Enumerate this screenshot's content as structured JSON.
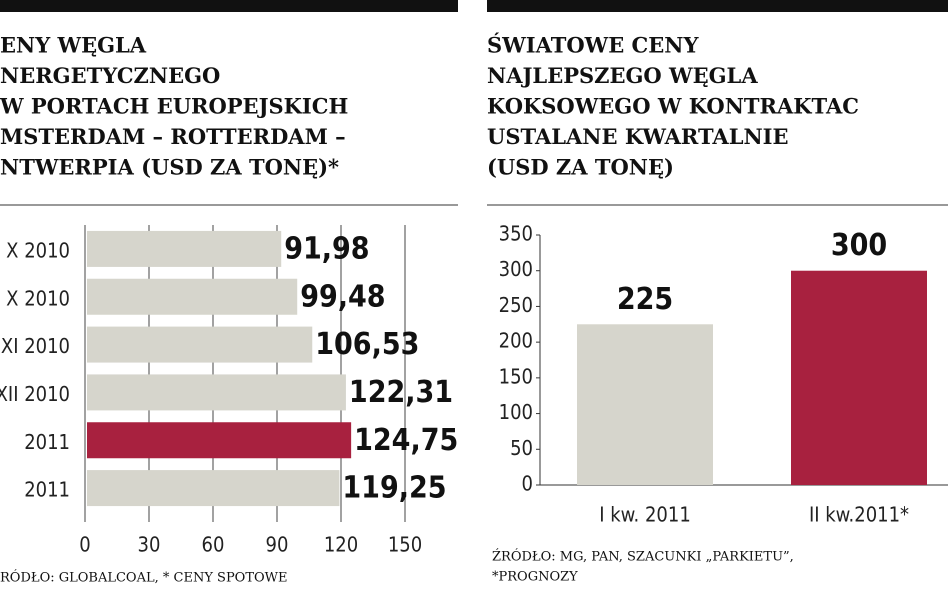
{
  "chart_data": [
    {
      "type": "barh",
      "title": [
        "ENY WĘGLA",
        "NERGETYCZNEGO",
        "W PORTACH EUROPEJSKICH",
        "MSTERDAM – ROTTERDAM –",
        "NTWERPIA (USD ZA TONĘ)*"
      ],
      "categories": [
        "X 2010",
        "X 2010",
        "XI 2010",
        "XII 2010",
        "2011",
        "2011"
      ],
      "values": [
        91.98,
        99.48,
        106.53,
        122.31,
        124.75,
        119.25
      ],
      "value_labels": [
        "91,98",
        "99,48",
        "106,53",
        "122,31",
        "124,75",
        "119,25"
      ],
      "colors": [
        "#d6d5cc",
        "#d6d5cc",
        "#d6d5cc",
        "#d6d5cc",
        "#a8213f",
        "#d6d5cc"
      ],
      "xlim": [
        0,
        150
      ],
      "xticks": [
        0,
        30,
        60,
        90,
        120,
        150
      ],
      "grid": true,
      "source": "RÓDŁO: GLOBALCOAL, * CENY SPOTOWE"
    },
    {
      "type": "bar",
      "title": [
        "ŚWIATOWE CENY",
        "NAJLEPSZEGO WĘGLA",
        "KOKSOWEGO W KONTRAKTAC",
        "USTALANE KWARTALNIE",
        "(USD ZA TONĘ)"
      ],
      "categories": [
        "I kw. 2011",
        "II kw.2011*"
      ],
      "values": [
        225,
        300
      ],
      "colors": [
        "#d6d5cc",
        "#a8213f"
      ],
      "ylim": [
        0,
        350
      ],
      "yticks": [
        0,
        50,
        100,
        150,
        200,
        250,
        300,
        350
      ],
      "grid": false,
      "source": [
        "ŹRÓDŁO: MG, PAN, SZACUNKI „PARKIETU”,",
        "*PROGNOZY"
      ]
    }
  ]
}
